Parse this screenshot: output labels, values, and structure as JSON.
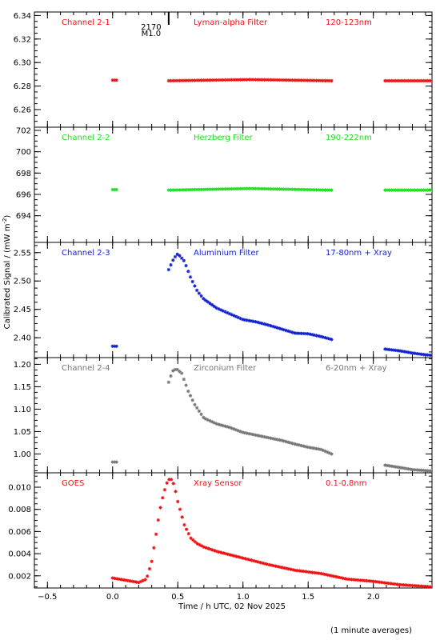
{
  "figure": {
    "ylabel": "Calibrated Signal / (mW m",
    "ylabel_sup": "-2",
    "ylabel_close": ")",
    "xlabel": "Time / h UTC, 02 Nov 2025",
    "footnote": "(1 minute averages)",
    "event_marker": {
      "x": 0.43,
      "label_top": "2170",
      "label_bottom": "M1.0"
    }
  },
  "chart_data": [
    {
      "type": "scatter",
      "title_left": "Channel 2-1",
      "title_mid": "Lyman-alpha Filter",
      "title_right": "120-123nm",
      "color": "#ee1111",
      "ylim": [
        6.245,
        6.343
      ],
      "yticks": [
        6.26,
        6.28,
        6.3,
        6.32,
        6.34
      ],
      "ytick_labels": [
        "6.26",
        "6.28",
        "6.30",
        "6.32",
        "6.34"
      ],
      "segments": [
        {
          "x_start": 0.0,
          "x_end": 0.03,
          "profile": "flat",
          "base": 6.285
        },
        {
          "x_start": 0.43,
          "x_end": 1.68,
          "profile": "flat",
          "base": 6.2845,
          "bump": 6.2855
        },
        {
          "x_start": 2.09,
          "x_end": 2.45,
          "profile": "flat",
          "base": 6.2845
        }
      ]
    },
    {
      "type": "scatter",
      "title_left": "Channel 2-2",
      "title_mid": "Herzberg Filter",
      "title_right": "190-222nm",
      "color": "#22dd22",
      "ylim": [
        691.5,
        702.3
      ],
      "yticks": [
        694,
        696,
        698,
        700,
        702
      ],
      "ytick_labels": [
        "694",
        "696",
        "698",
        "700",
        "702"
      ],
      "segments": [
        {
          "x_start": 0.0,
          "x_end": 0.03,
          "profile": "flat",
          "base": 696.45
        },
        {
          "x_start": 0.43,
          "x_end": 1.68,
          "profile": "flat",
          "base": 696.4,
          "bump": 696.55
        },
        {
          "x_start": 2.09,
          "x_end": 2.45,
          "profile": "flat",
          "base": 696.4
        }
      ]
    },
    {
      "type": "scatter",
      "title_left": "Channel 2-3",
      "title_mid": "Aluminium Filter",
      "title_right": "17-80nm + Xray",
      "color": "#1122cc",
      "ylim": [
        2.365,
        2.568
      ],
      "yticks": [
        2.4,
        2.45,
        2.5,
        2.55
      ],
      "ytick_labels": [
        "2.40",
        "2.45",
        "2.50",
        "2.55"
      ],
      "segments": [
        {
          "x_start": 0.0,
          "x_end": 0.03,
          "profile": "flat",
          "base": 2.385
        },
        {
          "x_start": 0.43,
          "x_end": 1.68,
          "profile": "knots",
          "knots": [
            [
              0.43,
              2.52
            ],
            [
              0.47,
              2.54
            ],
            [
              0.5,
              2.548
            ],
            [
              0.55,
              2.535
            ],
            [
              0.6,
              2.505
            ],
            [
              0.65,
              2.482
            ],
            [
              0.7,
              2.468
            ],
            [
              0.8,
              2.452
            ],
            [
              0.9,
              2.442
            ],
            [
              1.0,
              2.432
            ],
            [
              1.1,
              2.428
            ],
            [
              1.2,
              2.422
            ],
            [
              1.3,
              2.415
            ],
            [
              1.4,
              2.408
            ],
            [
              1.5,
              2.407
            ],
            [
              1.6,
              2.402
            ],
            [
              1.68,
              2.397
            ]
          ]
        },
        {
          "x_start": 2.09,
          "x_end": 2.45,
          "profile": "knots",
          "knots": [
            [
              2.09,
              2.38
            ],
            [
              2.2,
              2.377
            ],
            [
              2.3,
              2.373
            ],
            [
              2.4,
              2.37
            ],
            [
              2.45,
              2.369
            ]
          ]
        }
      ]
    },
    {
      "type": "scatter",
      "title_left": "Channel 2-4",
      "title_mid": "Zirconium Filter",
      "title_right": "6-20nm + Xray",
      "color": "#777777",
      "ylim": [
        0.958,
        1.215
      ],
      "yticks": [
        1.0,
        1.05,
        1.1,
        1.15,
        1.2
      ],
      "ytick_labels": [
        "1.00",
        "1.05",
        "1.10",
        "1.15",
        "1.20"
      ],
      "segments": [
        {
          "x_start": 0.0,
          "x_end": 0.03,
          "profile": "flat",
          "base": 0.982
        },
        {
          "x_start": 0.43,
          "x_end": 1.68,
          "profile": "knots",
          "knots": [
            [
              0.43,
              1.16
            ],
            [
              0.46,
              1.185
            ],
            [
              0.49,
              1.19
            ],
            [
              0.53,
              1.18
            ],
            [
              0.58,
              1.14
            ],
            [
              0.63,
              1.11
            ],
            [
              0.7,
              1.08
            ],
            [
              0.8,
              1.067
            ],
            [
              0.9,
              1.059
            ],
            [
              1.0,
              1.048
            ],
            [
              1.1,
              1.042
            ],
            [
              1.2,
              1.036
            ],
            [
              1.3,
              1.03
            ],
            [
              1.4,
              1.022
            ],
            [
              1.5,
              1.015
            ],
            [
              1.6,
              1.01
            ],
            [
              1.68,
              1.0
            ]
          ]
        },
        {
          "x_start": 2.09,
          "x_end": 2.45,
          "profile": "knots",
          "knots": [
            [
              2.09,
              0.975
            ],
            [
              2.2,
              0.97
            ],
            [
              2.3,
              0.965
            ],
            [
              2.4,
              0.963
            ],
            [
              2.45,
              0.962
            ]
          ]
        }
      ]
    },
    {
      "type": "scatter",
      "title_left": "GOES",
      "title_mid": "Xray Sensor",
      "title_right": "0.1-0.8nm",
      "color": "#ee1111",
      "ylim": [
        0.0009,
        0.0113
      ],
      "yticks": [
        0.002,
        0.004,
        0.006,
        0.008,
        0.01
      ],
      "ytick_labels": [
        "0.002",
        "0.004",
        "0.006",
        "0.008",
        "0.010"
      ],
      "segments": [
        {
          "x_start": 0.0,
          "x_end": 2.45,
          "profile": "knots",
          "knots": [
            [
              0.0,
              0.0018
            ],
            [
              0.1,
              0.0016
            ],
            [
              0.2,
              0.0014
            ],
            [
              0.26,
              0.0017
            ],
            [
              0.3,
              0.0033
            ],
            [
              0.33,
              0.0055
            ],
            [
              0.36,
              0.0078
            ],
            [
              0.39,
              0.0094
            ],
            [
              0.42,
              0.0105
            ],
            [
              0.44,
              0.0108
            ],
            [
              0.46,
              0.0106
            ],
            [
              0.48,
              0.0098
            ],
            [
              0.5,
              0.0087
            ],
            [
              0.55,
              0.0066
            ],
            [
              0.6,
              0.0054
            ],
            [
              0.65,
              0.0049
            ],
            [
              0.7,
              0.0046
            ],
            [
              0.8,
              0.0042
            ],
            [
              0.9,
              0.0039
            ],
            [
              1.0,
              0.0036
            ],
            [
              1.2,
              0.003
            ],
            [
              1.4,
              0.0025
            ],
            [
              1.6,
              0.0022
            ],
            [
              1.8,
              0.0017
            ],
            [
              2.0,
              0.0015
            ],
            [
              2.2,
              0.0012
            ],
            [
              2.45,
              0.001
            ]
          ]
        }
      ]
    }
  ],
  "x_axis": {
    "xlim": [
      -0.6,
      2.45
    ],
    "ticks": [
      -0.5,
      0.0,
      0.5,
      1.0,
      1.5,
      2.0
    ],
    "tick_labels": [
      "−0.5",
      "0.0",
      "0.5",
      "1.0",
      "1.5",
      "2.0"
    ],
    "minor_step": 0.1
  }
}
